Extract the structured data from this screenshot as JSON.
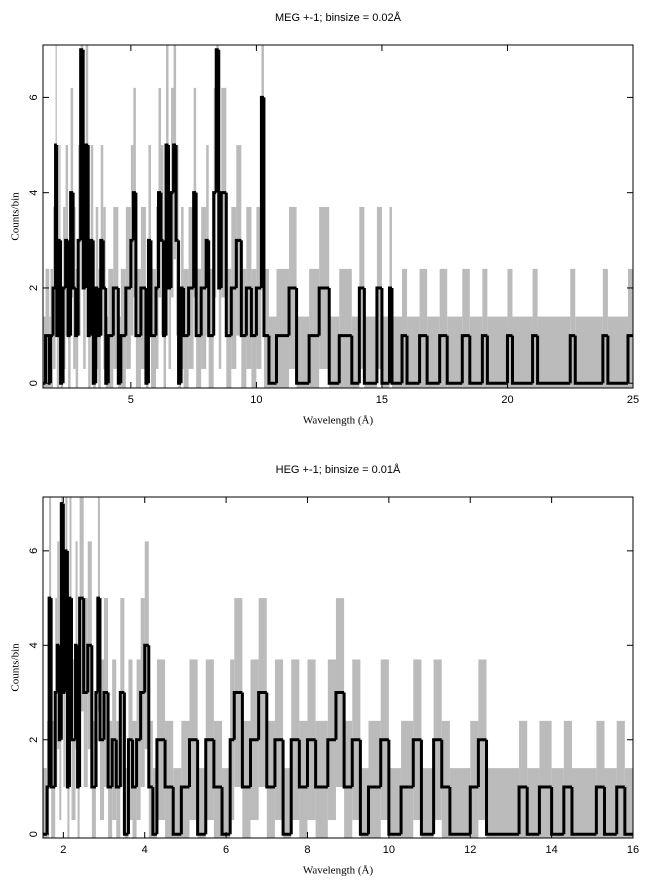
{
  "chart_data": [
    {
      "type": "step",
      "title": "MEG +-1; binsize = 0.02Å",
      "xlabel": "Wavelength (Å)",
      "ylabel": "Counts/bin",
      "x": [
        1.5,
        1.6,
        1.75,
        1.8,
        1.9,
        2.0,
        2.05,
        2.15,
        2.2,
        2.3,
        2.4,
        2.5,
        2.6,
        2.7,
        2.8,
        2.9,
        3.0,
        3.1,
        3.2,
        3.3,
        3.4,
        3.5,
        3.6,
        3.7,
        3.8,
        3.9,
        4.0,
        4.1,
        4.3,
        4.5,
        4.6,
        4.8,
        5.0,
        5.1,
        5.2,
        5.4,
        5.6,
        5.7,
        5.8,
        6.0,
        6.1,
        6.2,
        6.3,
        6.4,
        6.5,
        6.6,
        6.7,
        6.8,
        6.9,
        7.0,
        7.1,
        7.3,
        7.5,
        7.6,
        7.8,
        8.0,
        8.1,
        8.3,
        8.4,
        8.5,
        8.6,
        8.8,
        9.0,
        9.2,
        9.4,
        9.6,
        9.8,
        10.0,
        10.2,
        10.3,
        10.5,
        10.8,
        11.3,
        11.6,
        12.1,
        12.5,
        12.9,
        13.3,
        13.8,
        14.1,
        14.3,
        14.8,
        15.0,
        15.3,
        15.4,
        15.8,
        16.0,
        16.5,
        16.8,
        17.3,
        17.6,
        18.2,
        18.5,
        19.0,
        19.2,
        20.0,
        20.2,
        21.0,
        21.2,
        22.5,
        22.7,
        23.8,
        24.0,
        24.8
      ],
      "values": [
        0,
        1,
        0,
        1,
        2,
        5,
        1,
        3,
        0,
        2,
        3,
        1,
        4,
        2,
        1,
        3,
        7,
        2,
        5,
        1,
        3,
        0,
        2,
        1,
        3,
        2,
        0,
        1,
        2,
        0,
        1,
        2,
        3,
        4,
        1,
        2,
        0,
        3,
        1,
        2,
        4,
        3,
        1,
        5,
        2,
        4,
        5,
        3,
        0,
        2,
        1,
        2,
        4,
        1,
        2,
        3,
        1,
        4,
        7,
        2,
        4,
        1,
        2,
        3,
        1,
        2,
        1,
        2,
        6,
        1,
        0,
        1,
        2,
        0,
        1,
        2,
        0,
        1,
        0,
        2,
        0,
        2,
        0,
        2,
        0,
        1,
        0,
        1,
        0,
        1,
        0,
        1,
        0,
        1,
        0,
        1,
        0,
        1,
        0,
        1,
        0,
        1,
        0,
        1
      ],
      "errors": [
        1.4,
        1.4,
        1.4,
        1.4,
        1.7,
        2.4,
        1.4,
        2,
        1.4,
        1.7,
        2,
        1.4,
        2.2,
        1.7,
        1.4,
        2,
        2.8,
        1.7,
        2.4,
        1.4,
        2,
        1.4,
        1.7,
        1.4,
        2,
        1.7,
        1.4,
        1.4,
        1.7,
        1.4,
        1.4,
        1.7,
        2,
        2.2,
        1.4,
        1.7,
        1.4,
        2,
        1.4,
        1.7,
        2.2,
        2,
        1.4,
        2.4,
        1.7,
        2.2,
        2.4,
        2,
        1.4,
        1.7,
        1.4,
        1.7,
        2.2,
        1.4,
        1.7,
        2,
        1.4,
        2.2,
        2.8,
        1.7,
        2.2,
        1.4,
        1.7,
        2,
        1.4,
        1.7,
        1.4,
        1.7,
        2.6,
        1.4,
        1.4,
        1.4,
        1.7,
        1.4,
        1.4,
        1.7,
        1.4,
        1.4,
        1.4,
        1.7,
        1.4,
        1.7,
        1.4,
        1.7,
        1.4,
        1.4,
        1.4,
        1.4,
        1.4,
        1.4,
        1.4,
        1.4,
        1.4,
        1.4,
        1.4,
        1.4,
        1.4,
        1.4,
        1.4,
        1.4,
        1.4,
        1.4,
        1.4,
        1.4
      ],
      "xlim": [
        1.5,
        25
      ],
      "ylim": [
        -0.1,
        7.1
      ],
      "xticks": [
        5,
        10,
        15,
        20,
        25
      ],
      "yticks": [
        0,
        2,
        4,
        6
      ],
      "color": "#000000",
      "error_color": "#bbbbbb"
    },
    {
      "type": "step",
      "title": "HEG +-1; binsize = 0.01Å",
      "xlabel": "Wavelength (Å)",
      "ylabel": "Counts/bin",
      "x": [
        1.5,
        1.6,
        1.65,
        1.7,
        1.8,
        1.85,
        1.9,
        1.95,
        2.0,
        2.05,
        2.1,
        2.15,
        2.2,
        2.3,
        2.35,
        2.4,
        2.5,
        2.6,
        2.7,
        2.8,
        2.85,
        2.9,
        3.0,
        3.1,
        3.2,
        3.3,
        3.4,
        3.5,
        3.6,
        3.7,
        3.8,
        3.9,
        4.0,
        4.1,
        4.2,
        4.3,
        4.5,
        4.7,
        4.9,
        5.1,
        5.3,
        5.5,
        5.7,
        5.9,
        6.1,
        6.2,
        6.4,
        6.6,
        6.8,
        7.0,
        7.2,
        7.4,
        7.6,
        7.8,
        8.0,
        8.2,
        8.5,
        8.7,
        8.9,
        9.1,
        9.3,
        9.5,
        9.8,
        10.0,
        10.3,
        10.6,
        10.8,
        11.1,
        11.3,
        11.5,
        12.0,
        12.2,
        12.4,
        13.2,
        13.4,
        13.7,
        14.0,
        14.3,
        14.5,
        15.1,
        15.3,
        15.6,
        15.8
      ],
      "values": [
        0,
        1,
        5,
        1,
        3,
        4,
        2,
        7,
        3,
        6,
        1,
        5,
        2,
        4,
        1,
        5,
        3,
        4,
        1,
        3,
        5,
        2,
        3,
        1,
        2,
        1,
        3,
        0,
        2,
        1,
        2,
        3,
        4,
        1,
        0,
        2,
        1,
        0,
        1,
        2,
        0,
        2,
        1,
        0,
        2,
        3,
        1,
        2,
        3,
        1,
        2,
        0,
        2,
        1,
        2,
        1,
        2,
        3,
        1,
        2,
        0,
        1,
        2,
        0,
        1,
        2,
        0,
        2,
        1,
        0,
        1,
        2,
        0,
        1,
        0,
        1,
        0,
        1,
        0,
        1,
        0,
        1,
        0
      ],
      "errors": [
        1.4,
        1.4,
        2.4,
        1.4,
        2,
        2.2,
        1.7,
        2.8,
        2,
        2.6,
        1.4,
        2.4,
        1.7,
        2.2,
        1.4,
        2.4,
        2,
        2.2,
        1.4,
        2,
        2.4,
        1.7,
        2,
        1.4,
        1.7,
        1.4,
        2,
        1.4,
        1.7,
        1.4,
        1.7,
        2,
        2.2,
        1.4,
        1.4,
        1.7,
        1.4,
        1.4,
        1.4,
        1.7,
        1.4,
        1.7,
        1.4,
        1.4,
        1.7,
        2,
        1.4,
        1.7,
        2,
        1.4,
        1.7,
        1.4,
        1.7,
        1.4,
        1.7,
        1.4,
        1.7,
        2,
        1.4,
        1.7,
        1.4,
        1.4,
        1.7,
        1.4,
        1.4,
        1.7,
        1.4,
        1.7,
        1.4,
        1.4,
        1.4,
        1.7,
        1.4,
        1.4,
        1.4,
        1.4,
        1.4,
        1.4,
        1.4,
        1.4,
        1.4,
        1.4,
        1.4
      ],
      "xlim": [
        1.5,
        16
      ],
      "ylim": [
        -0.08,
        7.14
      ],
      "xticks": [
        2,
        4,
        6,
        8,
        10,
        12,
        14,
        16
      ],
      "yticks": [
        0,
        2,
        4,
        6
      ],
      "color": "#000000",
      "error_color": "#bbbbbb"
    }
  ]
}
